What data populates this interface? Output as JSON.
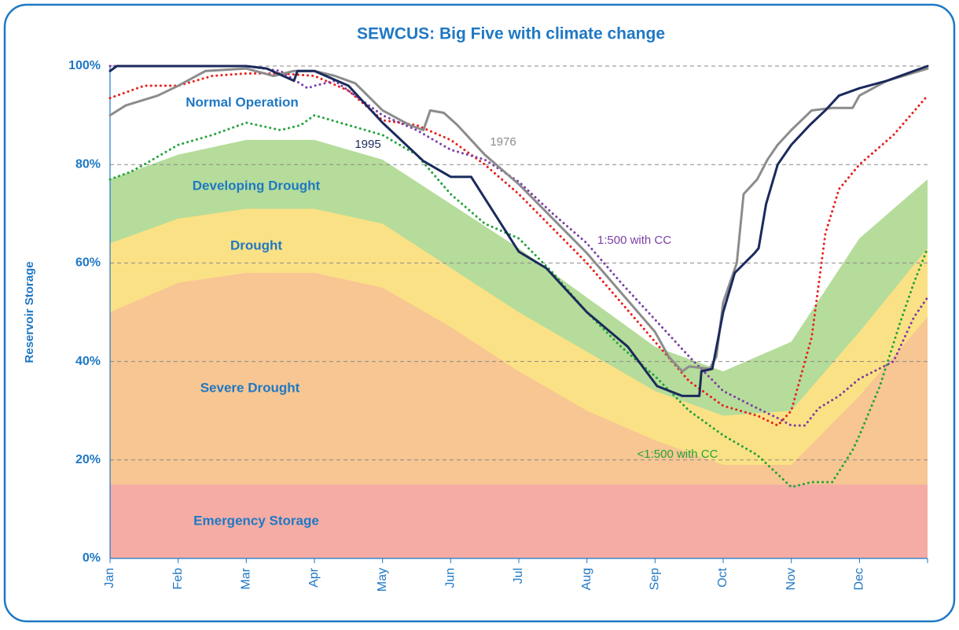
{
  "chart_data": {
    "type": "line",
    "title": "SEWCUS: Big Five with climate change",
    "y_label": "Reservoir Storage",
    "xlim": [
      0,
      12
    ],
    "xticks": [
      {
        "value": 0,
        "label": "Jan"
      },
      {
        "value": 1,
        "label": "Feb"
      },
      {
        "value": 2,
        "label": "Mar"
      },
      {
        "value": 3,
        "label": "Apr"
      },
      {
        "value": 4,
        "label": "May"
      },
      {
        "value": 5,
        "label": "Jun"
      },
      {
        "value": 6,
        "label": "Jul"
      },
      {
        "value": 7,
        "label": "Aug"
      },
      {
        "value": 8,
        "label": "Sep"
      },
      {
        "value": 9,
        "label": "Oct"
      },
      {
        "value": 10,
        "label": "Nov"
      },
      {
        "value": 11,
        "label": "Dec"
      }
    ],
    "ylim": [
      0,
      100
    ],
    "yticks": [
      {
        "value": 0,
        "label": "0%"
      },
      {
        "value": 20,
        "label": "20%"
      },
      {
        "value": 40,
        "label": "40%"
      },
      {
        "value": 60,
        "label": "60%"
      },
      {
        "value": 80,
        "label": "80%"
      },
      {
        "value": 100,
        "label": "100%"
      }
    ],
    "grid": true,
    "annotations": [
      "Normal Operation"
    ],
    "zone_x": [
      0,
      1,
      2,
      3,
      4,
      5,
      6,
      7,
      8,
      9,
      10,
      11,
      12
    ],
    "zones": [
      {
        "name": "Developing Drought",
        "color": "#b5dc9a",
        "values": [
          77,
          82,
          85,
          85,
          81,
          72,
          63,
          53,
          43,
          38,
          44,
          65,
          77
        ]
      },
      {
        "name": "Drought",
        "color": "#fbe185",
        "values": [
          64,
          69,
          71,
          71,
          68,
          59,
          50,
          42,
          34,
          29,
          30,
          46,
          63
        ]
      },
      {
        "name": "Severe Drought",
        "color": "#f7c692",
        "values": [
          50,
          56,
          58,
          58,
          55,
          47,
          38,
          30,
          24,
          19,
          19,
          33,
          49
        ]
      },
      {
        "name": "Emergency Storage",
        "color": "#f4aca4",
        "values": [
          15,
          15,
          15,
          15,
          15,
          15,
          15,
          15,
          15,
          15,
          15,
          15,
          15
        ]
      }
    ],
    "series": [
      {
        "name": "<1:500 with CC",
        "color": "#22a33a",
        "dash": "dotted",
        "x": [
          0,
          0.3,
          0.5,
          1,
          1.5,
          2,
          2.5,
          2.8,
          3,
          3.5,
          4,
          4.5,
          5,
          5.5,
          6,
          6.5,
          7,
          7.5,
          8,
          8.5,
          9,
          9.5,
          10,
          10.3,
          10.6,
          10.9,
          11,
          11.3,
          11.6,
          11.8,
          12
        ],
        "values": [
          77,
          78.5,
          80,
          84,
          86,
          88.5,
          87,
          88,
          90,
          88,
          86,
          82,
          74,
          68,
          65,
          58,
          50,
          43,
          37,
          30,
          25,
          21,
          14.5,
          15.5,
          15.5,
          22,
          25,
          35,
          48,
          56,
          63
        ]
      },
      {
        "color": "#e8201c",
        "dash": "dotted",
        "x": [
          0,
          0.5,
          1,
          1.5,
          2,
          2.5,
          3,
          3.5,
          4,
          4.5,
          5,
          5.5,
          6,
          6.5,
          7,
          7.5,
          8,
          8.5,
          9,
          9.5,
          9.8,
          10,
          10.3,
          10.5,
          10.7,
          11,
          11.5,
          12
        ],
        "values": [
          93.5,
          96,
          96,
          98,
          98.5,
          98.5,
          98,
          95,
          89,
          88,
          85,
          80,
          74,
          67,
          60,
          52,
          44,
          36,
          31,
          29,
          27,
          30,
          45,
          66,
          75,
          80,
          86,
          94
        ]
      },
      {
        "name": "1:500 with CC",
        "color": "#7b3fa6",
        "dash": "dotted",
        "x": [
          0,
          1,
          2,
          2.5,
          2.9,
          3,
          3.3,
          3.6,
          4,
          4.5,
          5,
          5.5,
          6,
          6.5,
          7,
          7.5,
          8,
          8.5,
          9,
          9.5,
          9.8,
          10,
          10.2,
          10.4,
          10.7,
          11,
          11.5,
          11.8,
          12
        ],
        "values": [
          100,
          100,
          100,
          99,
          95.5,
          96,
          97,
          94,
          90,
          87,
          83,
          81,
          76.5,
          70,
          64,
          56,
          48.5,
          41,
          34,
          30.5,
          28.5,
          27,
          27,
          30.5,
          33,
          36.5,
          40,
          49,
          53
        ]
      },
      {
        "name": "1976",
        "color": "#8c8c8c",
        "dash": "solid",
        "x": [
          0,
          0.23,
          0.7,
          1,
          1.4,
          2,
          2.4,
          2.7,
          3,
          3.3,
          3.6,
          4,
          4.4,
          4.6,
          4.7,
          4.9,
          5.1,
          5.5,
          6,
          6.5,
          7,
          7.5,
          8,
          8.2,
          8.4,
          8.5,
          8.8,
          8.9,
          9,
          9.2,
          9.3,
          9.5,
          9.65,
          9.8,
          10,
          10.3,
          10.6,
          10.9,
          11,
          11.4,
          12
        ],
        "values": [
          90,
          92,
          94,
          96,
          99,
          99.5,
          98,
          99,
          99,
          98,
          96.5,
          91,
          88,
          87,
          91,
          90.5,
          88,
          82,
          76,
          69,
          62,
          54,
          46,
          41,
          38,
          39,
          38.5,
          41,
          52,
          60,
          74,
          77,
          81,
          84,
          87,
          91,
          91.5,
          91.5,
          94,
          97,
          99.5
        ]
      },
      {
        "name": "1995",
        "color": "#1b2a5c",
        "dash": "solid",
        "x": [
          0,
          0.1,
          1,
          2,
          2.3,
          2.7,
          2.75,
          3,
          3.5,
          4,
          4.6,
          5,
          5.3,
          6,
          6.4,
          7,
          7.6,
          8.03,
          8.4,
          8.65,
          8.68,
          8.84,
          9,
          9.17,
          9.46,
          9.52,
          9.63,
          9.8,
          10,
          10.27,
          10.5,
          10.7,
          11,
          11.4,
          12
        ],
        "values": [
          99,
          100,
          100,
          100,
          99.5,
          97,
          99,
          99,
          96,
          88.5,
          80.7,
          77.5,
          77.5,
          62.3,
          59,
          50,
          43,
          35,
          33,
          33,
          38,
          38.5,
          50,
          58,
          62,
          63,
          72,
          80,
          84,
          88,
          91,
          94,
          95.5,
          97,
          100
        ]
      }
    ]
  }
}
